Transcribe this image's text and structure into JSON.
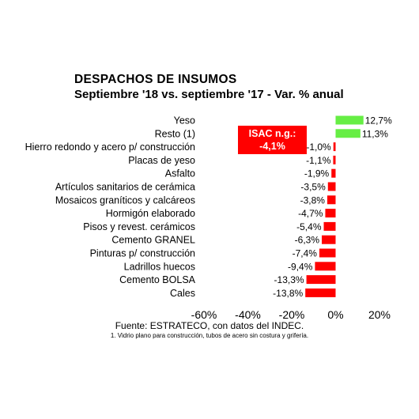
{
  "chart_data": {
    "type": "bar",
    "orientation": "horizontal",
    "title": "DESPACHOS DE INSUMOS",
    "subtitle": "Septiembre '18 vs. septiembre '17 - Var. % anual",
    "categories": [
      "Yeso",
      "Resto (1)",
      "Hierro redondo y acero p/ construcción",
      "Placas de yeso",
      "Asfalto",
      "Artículos sanitarios de cerámica",
      "Mosaicos graníticos y calcáreos",
      "Hormigón elaborado",
      "Pisos y revest. cerámicos",
      "Cemento GRANEL",
      "Pinturas p/ construcción",
      "Ladrillos huecos",
      "Cemento BOLSA",
      "Cales"
    ],
    "values": [
      12.7,
      11.3,
      -1.0,
      -1.1,
      -1.9,
      -3.5,
      -3.8,
      -4.7,
      -5.4,
      -6.3,
      -7.4,
      -9.4,
      -13.3,
      -13.8
    ],
    "value_labels": [
      "12,7%",
      "11,3%",
      "-1,0%",
      "-1,1%",
      "-1,9%",
      "-3,5%",
      "-3,8%",
      "-4,7%",
      "-5,4%",
      "-6,3%",
      "-7,4%",
      "-9,4%",
      "-13,3%",
      "-13,8%"
    ],
    "xlim": [
      -60,
      20
    ],
    "xticks": [
      -60,
      -40,
      -20,
      0,
      20
    ],
    "xtick_labels": [
      "-60%",
      "-40%",
      "-20%",
      "0%",
      "20%"
    ],
    "grid": false,
    "legend": "none",
    "colors": {
      "positive": "#66ee44",
      "negative": "#ff0000"
    },
    "annotation": {
      "line1": "ISAC n.g.:",
      "line2": "-4,1%"
    }
  },
  "source": "Fuente: ESTRATECO, con datos del INDEC.",
  "footnote": "1. Vidrio plano para construcción, tubos de acero sin costura y grifería."
}
